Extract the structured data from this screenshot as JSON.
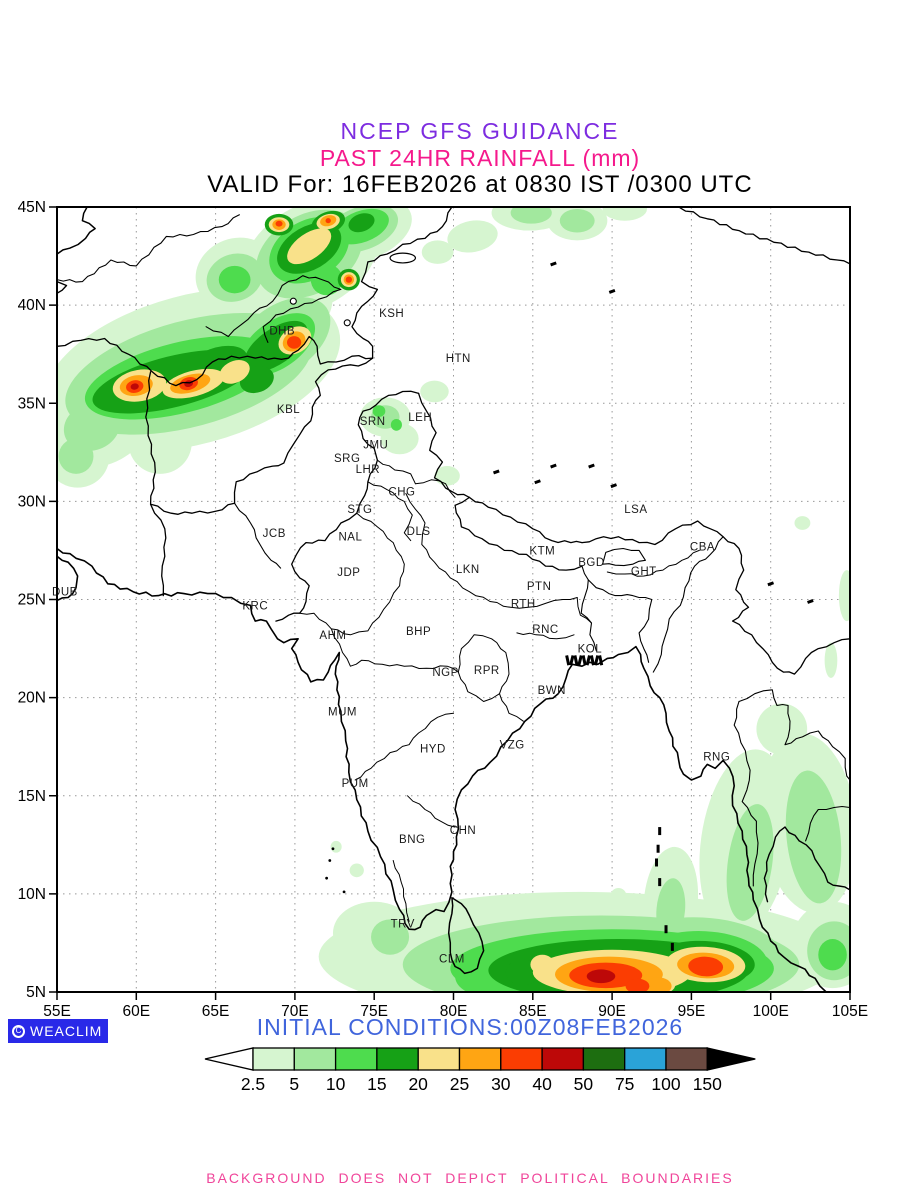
{
  "header": {
    "line1": "NCEP GFS GUIDANCE",
    "line2": "PAST 24HR RAINFALL (mm)",
    "line3": "VALID For: 16FEB2026 at 0830 IST /0300 UTC",
    "line1_color": "#7d2ce0",
    "line2_color": "#f5198c"
  },
  "footer": {
    "initial_conditions": "INITIAL CONDITIONS:00Z08FEB2026",
    "initial_conditions_color": "#4065dc",
    "disclaimer": "BACKGROUND DOES NOT DEPICT POLITICAL BOUNDARIES",
    "disclaimer_color": "#f0459a",
    "logo_text": "WEACLIM",
    "logo_bg": "#2929e8"
  },
  "map": {
    "lon_range": [
      55,
      105
    ],
    "lat_range": [
      5,
      45
    ],
    "lon_tick_step": 5,
    "lat_tick_step": 5,
    "lon_tick_suffix": "E",
    "lat_tick_suffix": "N",
    "grid_color": "#999999",
    "stations": [
      {
        "code": "KSH",
        "lon": 76.1,
        "lat": 39.6
      },
      {
        "code": "HTN",
        "lon": 80.3,
        "lat": 37.3
      },
      {
        "code": "DHB",
        "lon": 69.2,
        "lat": 38.7
      },
      {
        "code": "KBL",
        "lon": 69.6,
        "lat": 34.7
      },
      {
        "code": "SRN",
        "lon": 74.9,
        "lat": 34.1
      },
      {
        "code": "LEH",
        "lon": 77.9,
        "lat": 34.3
      },
      {
        "code": "JMU",
        "lon": 75.1,
        "lat": 32.9
      },
      {
        "code": "SRG",
        "lon": 73.3,
        "lat": 32.2
      },
      {
        "code": "LHR",
        "lon": 74.6,
        "lat": 31.65
      },
      {
        "code": "CHG",
        "lon": 76.75,
        "lat": 30.5
      },
      {
        "code": "STG",
        "lon": 74.1,
        "lat": 29.6
      },
      {
        "code": "DLS",
        "lon": 77.8,
        "lat": 28.5
      },
      {
        "code": "NAL",
        "lon": 73.5,
        "lat": 28.2
      },
      {
        "code": "JCB",
        "lon": 68.7,
        "lat": 28.4
      },
      {
        "code": "JDP",
        "lon": 73.4,
        "lat": 26.4
      },
      {
        "code": "LKN",
        "lon": 80.9,
        "lat": 26.55
      },
      {
        "code": "KTM",
        "lon": 85.6,
        "lat": 27.5
      },
      {
        "code": "LSA",
        "lon": 91.5,
        "lat": 29.6
      },
      {
        "code": "PTN",
        "lon": 85.4,
        "lat": 25.7
      },
      {
        "code": "GHT",
        "lon": 92.0,
        "lat": 26.45
      },
      {
        "code": "CBA",
        "lon": 95.7,
        "lat": 27.7
      },
      {
        "code": "BGD",
        "lon": 88.7,
        "lat": 26.9
      },
      {
        "code": "RTH",
        "lon": 84.4,
        "lat": 24.8
      },
      {
        "code": "RNC",
        "lon": 85.8,
        "lat": 23.5
      },
      {
        "code": "KRC",
        "lon": 67.5,
        "lat": 24.7
      },
      {
        "code": "DUB",
        "lon": 55.5,
        "lat": 25.4
      },
      {
        "code": "AHM",
        "lon": 72.4,
        "lat": 23.2
      },
      {
        "code": "BHP",
        "lon": 77.8,
        "lat": 23.4
      },
      {
        "code": "KOL",
        "lon": 88.6,
        "lat": 22.5
      },
      {
        "code": "NGP",
        "lon": 79.5,
        "lat": 21.3
      },
      {
        "code": "RPR",
        "lon": 82.1,
        "lat": 21.4
      },
      {
        "code": "BWN",
        "lon": 86.2,
        "lat": 20.4
      },
      {
        "code": "MUM",
        "lon": 73.0,
        "lat": 19.3
      },
      {
        "code": "HYD",
        "lon": 78.7,
        "lat": 17.4
      },
      {
        "code": "VZG",
        "lon": 83.7,
        "lat": 17.6
      },
      {
        "code": "RNG",
        "lon": 96.6,
        "lat": 17.0
      },
      {
        "code": "PUM",
        "lon": 73.8,
        "lat": 15.65
      },
      {
        "code": "CHN",
        "lon": 80.6,
        "lat": 13.25
      },
      {
        "code": "BNG",
        "lon": 77.4,
        "lat": 12.8
      },
      {
        "code": "TRV",
        "lon": 76.8,
        "lat": 8.5
      },
      {
        "code": "CLM",
        "lon": 79.9,
        "lat": 6.7
      }
    ]
  },
  "chart_data": {
    "type": "filled-contour-map",
    "title": "PAST 24HR RAINFALL (mm)",
    "scale_values": [
      "2.5",
      "5",
      "10",
      "15",
      "20",
      "25",
      "30",
      "40",
      "50",
      "75",
      "100",
      "150"
    ],
    "scale_colors": [
      "#ffffff",
      "#d6f5d0",
      "#a2e89e",
      "#4edc4e",
      "#16a116",
      "#f9e18a",
      "#ffa513",
      "#fb3d02",
      "#bd0808",
      "#1d6e10",
      "#2aa3d8",
      "#6b4a41",
      "#000000"
    ],
    "rain_cells": [
      [
        1,
        63.5,
        36.7,
        9.6,
        3.8,
        -15
      ],
      [
        1,
        57.5,
        34.0,
        3.5,
        2.2,
        -20
      ],
      [
        1,
        56.3,
        32.3,
        2.0,
        1.6,
        0
      ],
      [
        1,
        61.5,
        33.0,
        2.0,
        1.6,
        -10
      ],
      [
        1,
        69.5,
        40.0,
        3.0,
        2.0,
        -30
      ],
      [
        1,
        71.0,
        42.5,
        4.6,
        2.6,
        -30
      ],
      [
        1,
        74.3,
        43.8,
        3.2,
        1.5,
        -20
      ],
      [
        1,
        66.3,
        41.6,
        2.6,
        1.8,
        -20
      ],
      [
        1,
        75.7,
        34.3,
        1.6,
        1.0,
        0
      ],
      [
        1,
        76.6,
        33.2,
        1.2,
        0.8,
        0
      ],
      [
        1,
        78.8,
        35.6,
        0.9,
        0.55,
        0
      ],
      [
        1,
        79.6,
        31.3,
        0.8,
        0.5,
        0
      ],
      [
        1,
        84.8,
        44.7,
        2.4,
        0.9,
        0
      ],
      [
        1,
        87.8,
        44.3,
        1.9,
        1.0,
        0
      ],
      [
        1,
        81.2,
        43.5,
        1.6,
        0.8,
        -10
      ],
      [
        1,
        79.0,
        42.7,
        1.0,
        0.6,
        0
      ],
      [
        1,
        90.8,
        44.9,
        1.4,
        0.6,
        0
      ],
      [
        1,
        88.0,
        6.8,
        16.5,
        3.3,
        0
      ],
      [
        1,
        75.0,
        8.0,
        2.6,
        1.6,
        0
      ],
      [
        1,
        79.5,
        5.6,
        3.2,
        1.3,
        0
      ],
      [
        1,
        93.7,
        9.6,
        1.7,
        2.8,
        5
      ],
      [
        1,
        98.4,
        12.6,
        2.8,
        4.8,
        8
      ],
      [
        1,
        102.4,
        13.6,
        3.0,
        4.6,
        -6
      ],
      [
        1,
        103.9,
        7.4,
        2.6,
        2.2,
        0
      ],
      [
        1,
        100.7,
        18.4,
        1.6,
        1.3,
        0
      ],
      [
        1,
        90.0,
        8.9,
        0.6,
        0.5,
        0
      ],
      [
        1,
        90.4,
        9.9,
        0.5,
        0.4,
        0
      ],
      [
        1,
        73.9,
        11.2,
        0.45,
        0.35,
        0
      ],
      [
        1,
        72.6,
        12.4,
        0.35,
        0.3,
        0
      ],
      [
        1,
        104.8,
        25.2,
        0.5,
        1.3,
        0
      ],
      [
        1,
        103.8,
        21.9,
        0.4,
        0.9,
        0
      ],
      [
        1,
        102.0,
        28.9,
        0.5,
        0.35,
        0
      ],
      [
        2,
        63.3,
        36.5,
        8.0,
        2.7,
        -15
      ],
      [
        2,
        69.2,
        38.3,
        3.4,
        1.7,
        -35
      ],
      [
        2,
        70.9,
        42.6,
        3.6,
        2.0,
        -30
      ],
      [
        2,
        74.2,
        43.9,
        2.4,
        1.1,
        -20
      ],
      [
        2,
        66.2,
        41.4,
        1.8,
        1.2,
        -20
      ],
      [
        2,
        75.7,
        34.3,
        0.9,
        0.6,
        0
      ],
      [
        2,
        84.9,
        44.7,
        1.3,
        0.55,
        0
      ],
      [
        2,
        87.8,
        44.3,
        1.1,
        0.6,
        0
      ],
      [
        2,
        57.2,
        33.8,
        1.8,
        1.2,
        -20
      ],
      [
        2,
        56.2,
        32.3,
        1.1,
        0.9,
        0
      ],
      [
        2,
        89.3,
        6.4,
        12.5,
        2.5,
        0
      ],
      [
        2,
        84.0,
        6.4,
        4.2,
        1.7,
        0
      ],
      [
        2,
        95.6,
        6.9,
        5.2,
        1.9,
        3
      ],
      [
        2,
        98.7,
        11.6,
        1.4,
        3.0,
        8
      ],
      [
        2,
        102.7,
        12.9,
        1.7,
        3.4,
        -6
      ],
      [
        2,
        104.0,
        7.1,
        1.7,
        1.5,
        0
      ],
      [
        2,
        93.7,
        9.2,
        0.9,
        1.6,
        5
      ],
      [
        2,
        76.0,
        7.8,
        1.2,
        0.9,
        0
      ],
      [
        3,
        62.8,
        36.3,
        6.2,
        1.8,
        -14
      ],
      [
        3,
        68.9,
        38.0,
        2.7,
        1.2,
        -35
      ],
      [
        3,
        70.9,
        42.8,
        2.7,
        1.5,
        -30
      ],
      [
        3,
        74.2,
        44.0,
        1.8,
        0.8,
        -20
      ],
      [
        3,
        72.0,
        41.3,
        1.0,
        0.8,
        0
      ],
      [
        3,
        66.2,
        41.3,
        1.0,
        0.7,
        0
      ],
      [
        3,
        75.3,
        34.6,
        0.4,
        0.3,
        0
      ],
      [
        3,
        76.4,
        33.9,
        0.35,
        0.3,
        0
      ],
      [
        3,
        90.0,
        6.2,
        10.2,
        2.0,
        0
      ],
      [
        3,
        95.8,
        6.6,
        4.0,
        1.5,
        3
      ],
      [
        3,
        86.9,
        6.2,
        2.6,
        1.2,
        0
      ],
      [
        3,
        82.0,
        5.8,
        1.9,
        1.0,
        0
      ],
      [
        3,
        103.9,
        6.9,
        0.9,
        0.8,
        0
      ],
      [
        4,
        62.3,
        36.1,
        5.2,
        1.3,
        -14
      ],
      [
        4,
        65.0,
        36.9,
        2.1,
        0.9,
        -20
      ],
      [
        4,
        68.8,
        37.9,
        2.3,
        0.9,
        -35
      ],
      [
        4,
        70.9,
        42.9,
        2.2,
        1.1,
        -30
      ],
      [
        4,
        69.0,
        44.1,
        0.9,
        0.55,
        0
      ],
      [
        4,
        72.1,
        44.2,
        1.1,
        0.55,
        -20
      ],
      [
        4,
        73.4,
        41.3,
        0.7,
        0.55,
        0
      ],
      [
        4,
        67.6,
        36.2,
        1.1,
        0.65,
        -20
      ],
      [
        4,
        74.2,
        44.2,
        0.85,
        0.45,
        -20
      ],
      [
        4,
        90.4,
        6.1,
        8.2,
        1.6,
        0
      ],
      [
        4,
        95.8,
        6.5,
        3.2,
        1.1,
        3
      ],
      [
        4,
        87.0,
        6.1,
        1.9,
        0.9,
        0
      ],
      [
        4,
        84.4,
        6.0,
        1.1,
        0.65,
        0
      ],
      [
        5,
        60.2,
        35.9,
        1.7,
        0.8,
        -10
      ],
      [
        5,
        63.6,
        36.0,
        2.0,
        0.65,
        -15
      ],
      [
        5,
        66.2,
        36.6,
        1.0,
        0.55,
        -25
      ],
      [
        5,
        70.0,
        38.2,
        1.1,
        0.65,
        -30
      ],
      [
        5,
        70.9,
        43.0,
        1.6,
        0.65,
        -35
      ],
      [
        5,
        69.0,
        44.1,
        0.65,
        0.38,
        0
      ],
      [
        5,
        72.1,
        44.25,
        0.75,
        0.38,
        -15
      ],
      [
        5,
        73.4,
        41.3,
        0.5,
        0.38,
        0
      ],
      [
        5,
        90.0,
        6.0,
        5.0,
        1.15,
        0
      ],
      [
        5,
        95.9,
        6.4,
        2.5,
        0.9,
        3
      ],
      [
        5,
        85.6,
        6.4,
        0.75,
        0.5,
        0
      ],
      [
        5,
        92.9,
        5.4,
        1.1,
        0.55,
        0
      ],
      [
        6,
        60.0,
        35.9,
        1.05,
        0.52,
        -10
      ],
      [
        6,
        63.4,
        36.0,
        1.3,
        0.45,
        -15
      ],
      [
        6,
        69.95,
        38.15,
        0.75,
        0.48,
        -30
      ],
      [
        6,
        69.0,
        44.1,
        0.42,
        0.27,
        0
      ],
      [
        6,
        72.1,
        44.3,
        0.52,
        0.27,
        -15
      ],
      [
        6,
        73.4,
        41.3,
        0.33,
        0.27,
        0
      ],
      [
        6,
        89.8,
        5.9,
        3.4,
        0.9,
        0
      ],
      [
        6,
        95.9,
        6.35,
        1.8,
        0.65,
        3
      ],
      [
        6,
        92.9,
        5.3,
        0.85,
        0.45,
        0
      ],
      [
        7,
        59.9,
        35.85,
        0.55,
        0.32,
        -10
      ],
      [
        7,
        63.3,
        36.0,
        0.6,
        0.32,
        -15
      ],
      [
        7,
        69.95,
        38.1,
        0.45,
        0.32,
        0
      ],
      [
        7,
        73.4,
        41.3,
        0.2,
        0.16,
        0
      ],
      [
        7,
        69.0,
        44.15,
        0.22,
        0.15,
        0
      ],
      [
        7,
        72.1,
        44.3,
        0.17,
        0.13,
        0
      ],
      [
        7,
        89.6,
        5.85,
        2.3,
        0.65,
        0
      ],
      [
        7,
        95.9,
        6.3,
        1.1,
        0.5,
        3
      ],
      [
        7,
        91.6,
        5.3,
        0.75,
        0.38,
        0
      ],
      [
        8,
        63.3,
        36.0,
        0.28,
        0.17,
        -15
      ],
      [
        8,
        59.9,
        35.85,
        0.26,
        0.16,
        -10
      ],
      [
        8,
        89.3,
        5.8,
        0.9,
        0.35,
        0
      ]
    ]
  }
}
